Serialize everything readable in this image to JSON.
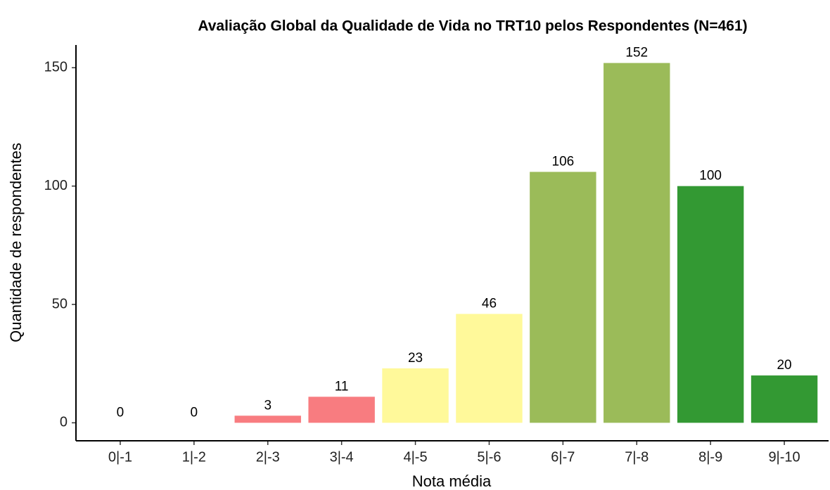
{
  "chart_data": {
    "type": "bar",
    "title": "Avaliação Global da Qualidade de Vida no TRT10 pelos Respondentes (N=461)",
    "x_label": "Nota média",
    "y_label": "Quantidade de respondentes",
    "categories": [
      "0|-1",
      "1|-2",
      "2|-3",
      "3|-4",
      "4|-5",
      "5|-6",
      "6|-7",
      "7|-8",
      "8|-9",
      "9|-10"
    ],
    "values": [
      0,
      0,
      3,
      11,
      23,
      46,
      106,
      152,
      100,
      20
    ],
    "colors": [
      "#F87C80",
      "#F87C80",
      "#F87C80",
      "#F87C80",
      "#FFF99A",
      "#FFF99A",
      "#9BBB59",
      "#9BBB59",
      "#339933",
      "#339933"
    ],
    "ylim": [
      -7.6,
      159.6
    ],
    "yticks": [
      0,
      50,
      100,
      150
    ],
    "grid": false
  }
}
